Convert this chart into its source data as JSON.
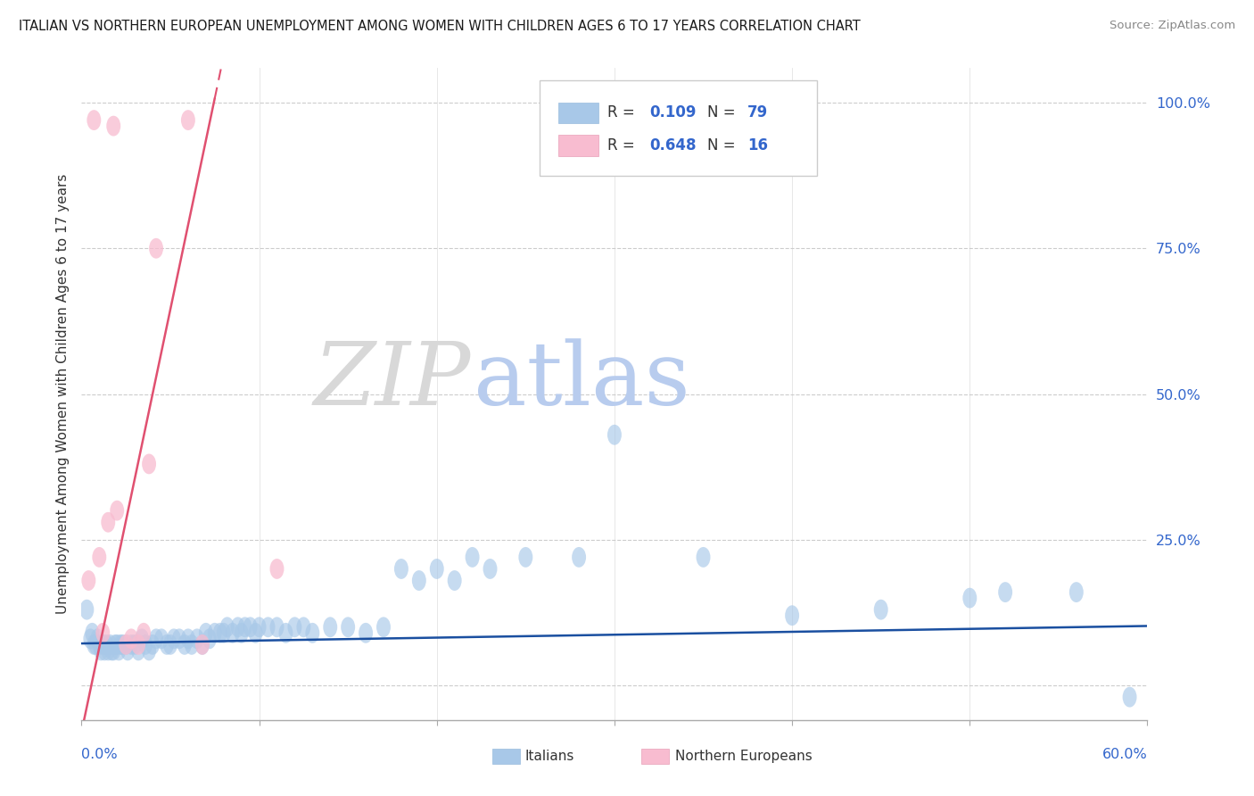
{
  "title": "ITALIAN VS NORTHERN EUROPEAN UNEMPLOYMENT AMONG WOMEN WITH CHILDREN AGES 6 TO 17 YEARS CORRELATION CHART",
  "source": "Source: ZipAtlas.com",
  "ylabel": "Unemployment Among Women with Children Ages 6 to 17 years",
  "yticks": [
    0.0,
    0.25,
    0.5,
    0.75,
    1.0
  ],
  "ytick_labels": [
    "",
    "25.0%",
    "50.0%",
    "75.0%",
    "100.0%"
  ],
  "xlim": [
    0.0,
    0.6
  ],
  "ylim": [
    -0.06,
    1.06
  ],
  "legend_r1": "0.109",
  "legend_n1": "79",
  "legend_r2": "0.648",
  "legend_n2": "16",
  "color_italian": "#a8c8e8",
  "color_northern": "#f8bcd0",
  "color_line_italian": "#1a4fa0",
  "color_line_northern": "#e05070",
  "watermark_zip_color": "#d8d8d8",
  "watermark_atlas_color": "#b8ccee",
  "italians_x": [
    0.003,
    0.005,
    0.006,
    0.007,
    0.008,
    0.009,
    0.01,
    0.011,
    0.012,
    0.013,
    0.014,
    0.015,
    0.016,
    0.017,
    0.018,
    0.019,
    0.02,
    0.021,
    0.022,
    0.023,
    0.025,
    0.026,
    0.028,
    0.03,
    0.032,
    0.034,
    0.036,
    0.038,
    0.04,
    0.042,
    0.045,
    0.048,
    0.05,
    0.052,
    0.055,
    0.058,
    0.06,
    0.062,
    0.065,
    0.068,
    0.07,
    0.072,
    0.075,
    0.078,
    0.08,
    0.082,
    0.085,
    0.088,
    0.09,
    0.092,
    0.095,
    0.098,
    0.1,
    0.105,
    0.11,
    0.115,
    0.12,
    0.125,
    0.13,
    0.14,
    0.15,
    0.16,
    0.17,
    0.18,
    0.19,
    0.2,
    0.21,
    0.22,
    0.23,
    0.25,
    0.28,
    0.3,
    0.35,
    0.4,
    0.45,
    0.5,
    0.52,
    0.56,
    0.59
  ],
  "italians_y": [
    0.13,
    0.08,
    0.09,
    0.07,
    0.07,
    0.08,
    0.07,
    0.06,
    0.07,
    0.06,
    0.07,
    0.06,
    0.07,
    0.06,
    0.06,
    0.07,
    0.07,
    0.06,
    0.07,
    0.07,
    0.07,
    0.06,
    0.07,
    0.07,
    0.06,
    0.08,
    0.07,
    0.06,
    0.07,
    0.08,
    0.08,
    0.07,
    0.07,
    0.08,
    0.08,
    0.07,
    0.08,
    0.07,
    0.08,
    0.07,
    0.09,
    0.08,
    0.09,
    0.09,
    0.09,
    0.1,
    0.09,
    0.1,
    0.09,
    0.1,
    0.1,
    0.09,
    0.1,
    0.1,
    0.1,
    0.09,
    0.1,
    0.1,
    0.09,
    0.1,
    0.1,
    0.09,
    0.1,
    0.2,
    0.18,
    0.2,
    0.18,
    0.22,
    0.2,
    0.22,
    0.22,
    0.43,
    0.22,
    0.12,
    0.13,
    0.15,
    0.16,
    0.16,
    -0.02
  ],
  "northern_x": [
    0.004,
    0.007,
    0.01,
    0.012,
    0.015,
    0.018,
    0.02,
    0.025,
    0.028,
    0.032,
    0.035,
    0.038,
    0.042,
    0.06,
    0.068,
    0.11
  ],
  "northern_y": [
    0.18,
    0.97,
    0.22,
    0.09,
    0.28,
    0.96,
    0.3,
    0.07,
    0.08,
    0.07,
    0.09,
    0.38,
    0.75,
    0.97,
    0.07,
    0.2
  ],
  "it_line_slope": 0.05,
  "it_line_intercept": 0.072,
  "no_line_slope": 14.5,
  "no_line_intercept": -0.08
}
